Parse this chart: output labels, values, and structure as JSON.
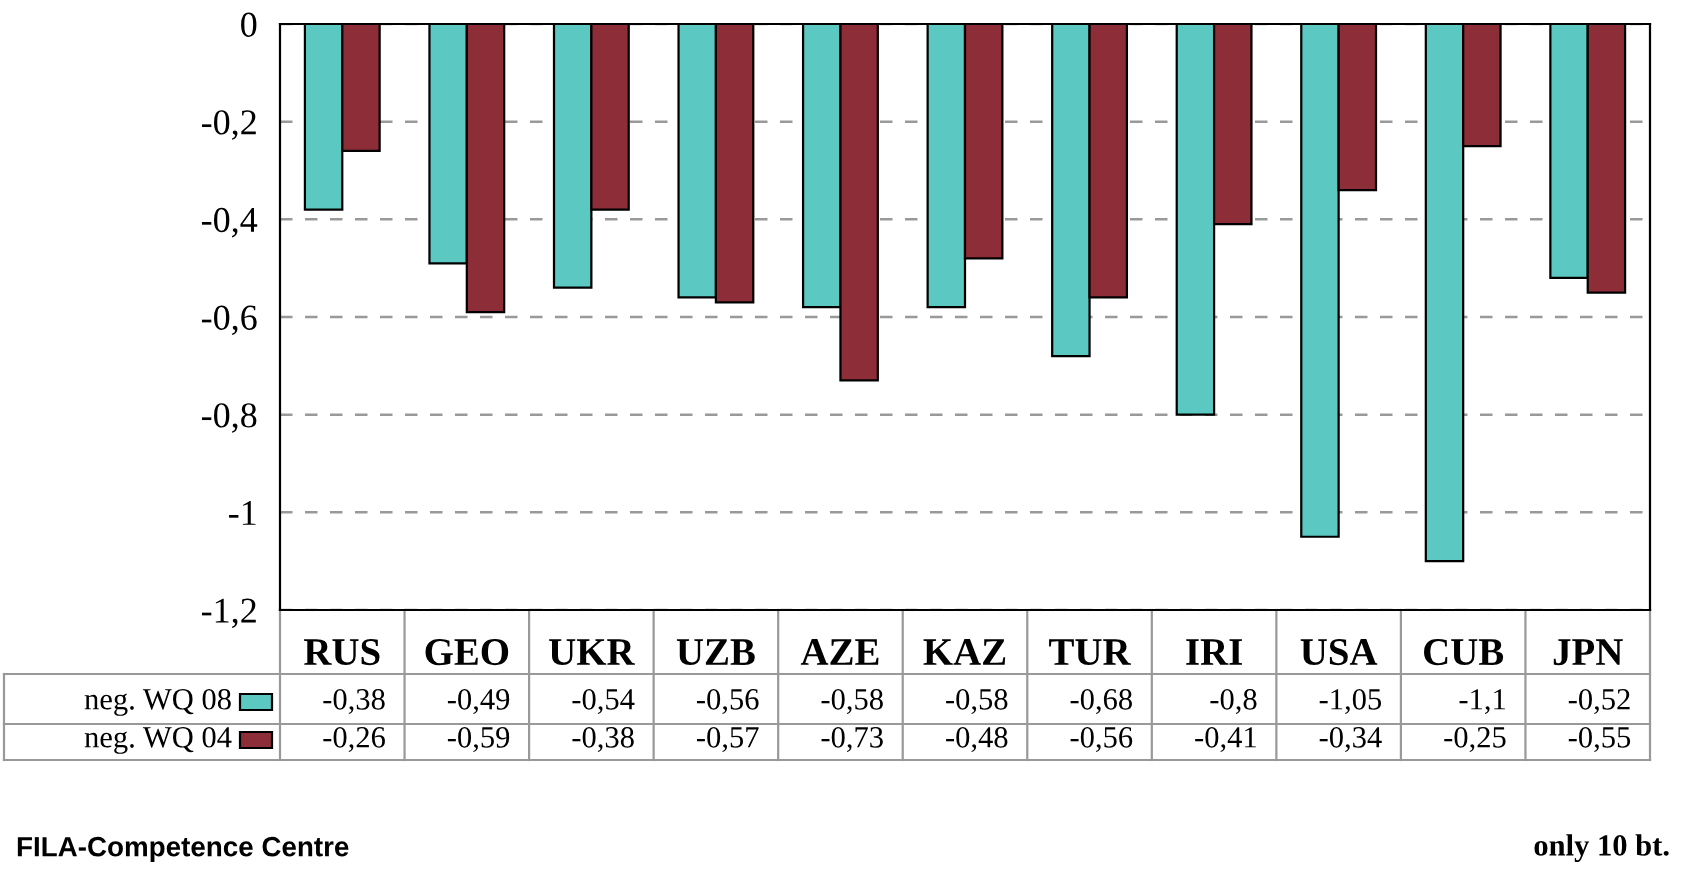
{
  "chart_data": {
    "type": "bar",
    "categories": [
      "RUS",
      "GEO",
      "UKR",
      "UZB",
      "AZE",
      "KAZ",
      "TUR",
      "IRI",
      "USA",
      "CUB",
      "JPN"
    ],
    "series": [
      {
        "name": "neg. WQ 08",
        "color": "#5cc8c2",
        "values": [
          -0.38,
          -0.49,
          -0.54,
          -0.56,
          -0.58,
          -0.58,
          -0.68,
          -0.8,
          -1.05,
          -1.1,
          -0.52
        ],
        "value_labels": [
          "-0,38",
          "-0,49",
          "-0,54",
          "-0,56",
          "-0,58",
          "-0,58",
          "-0,68",
          "-0,8",
          "-1,05",
          "-1,1",
          "-0,52"
        ]
      },
      {
        "name": "neg. WQ 04",
        "color": "#8c2d38",
        "values": [
          -0.26,
          -0.59,
          -0.38,
          -0.57,
          -0.73,
          -0.48,
          -0.56,
          -0.41,
          -0.34,
          -0.25,
          -0.55
        ],
        "value_labels": [
          "-0,26",
          "-0,59",
          "-0,38",
          "-0,57",
          "-0,73",
          "-0,48",
          "-0,56",
          "-0,41",
          "-0,34",
          "-0,25",
          "-0,55"
        ]
      }
    ],
    "ylim": [
      -1.2,
      0
    ],
    "yticks": [
      {
        "value": -1.2,
        "label": "-1,2"
      },
      {
        "value": -1,
        "label": "-1"
      },
      {
        "value": -0.8,
        "label": "-0,8"
      },
      {
        "value": -0.6,
        "label": "-0,6"
      },
      {
        "value": -0.4,
        "label": "-0,4"
      },
      {
        "value": -0.2,
        "label": "-0,2"
      },
      {
        "value": 0,
        "label": "0"
      }
    ],
    "grid": "y",
    "legend": "bottom",
    "annotations": [
      "FILA-Competence Centre",
      "only 10 bt."
    ]
  }
}
